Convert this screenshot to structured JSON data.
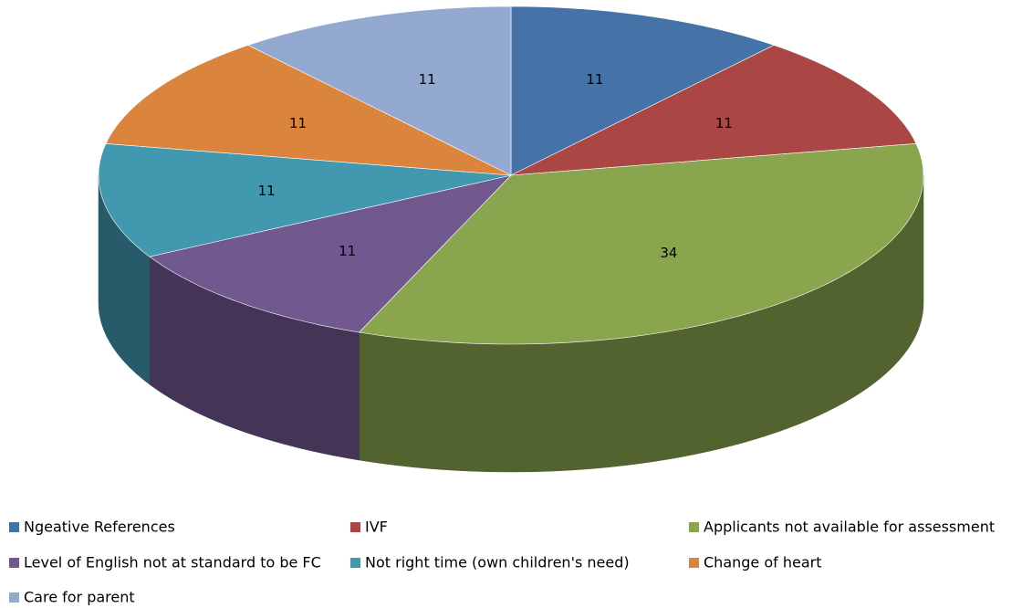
{
  "chart_data": {
    "type": "pie",
    "categories": [
      "Ngeative References",
      "IVF",
      "Applicants not available for assessment",
      "Level of English not at standard to be FC",
      "Not right time (own children's need)",
      "Change of heart",
      "Care for parent"
    ],
    "values": [
      11,
      11,
      34,
      11,
      11,
      11,
      11
    ],
    "colors": [
      "#4572a7",
      "#aa4643",
      "#89a54e",
      "#71588f",
      "#4198af",
      "#db843d",
      "#93a9cf"
    ],
    "legend": "bottom"
  }
}
